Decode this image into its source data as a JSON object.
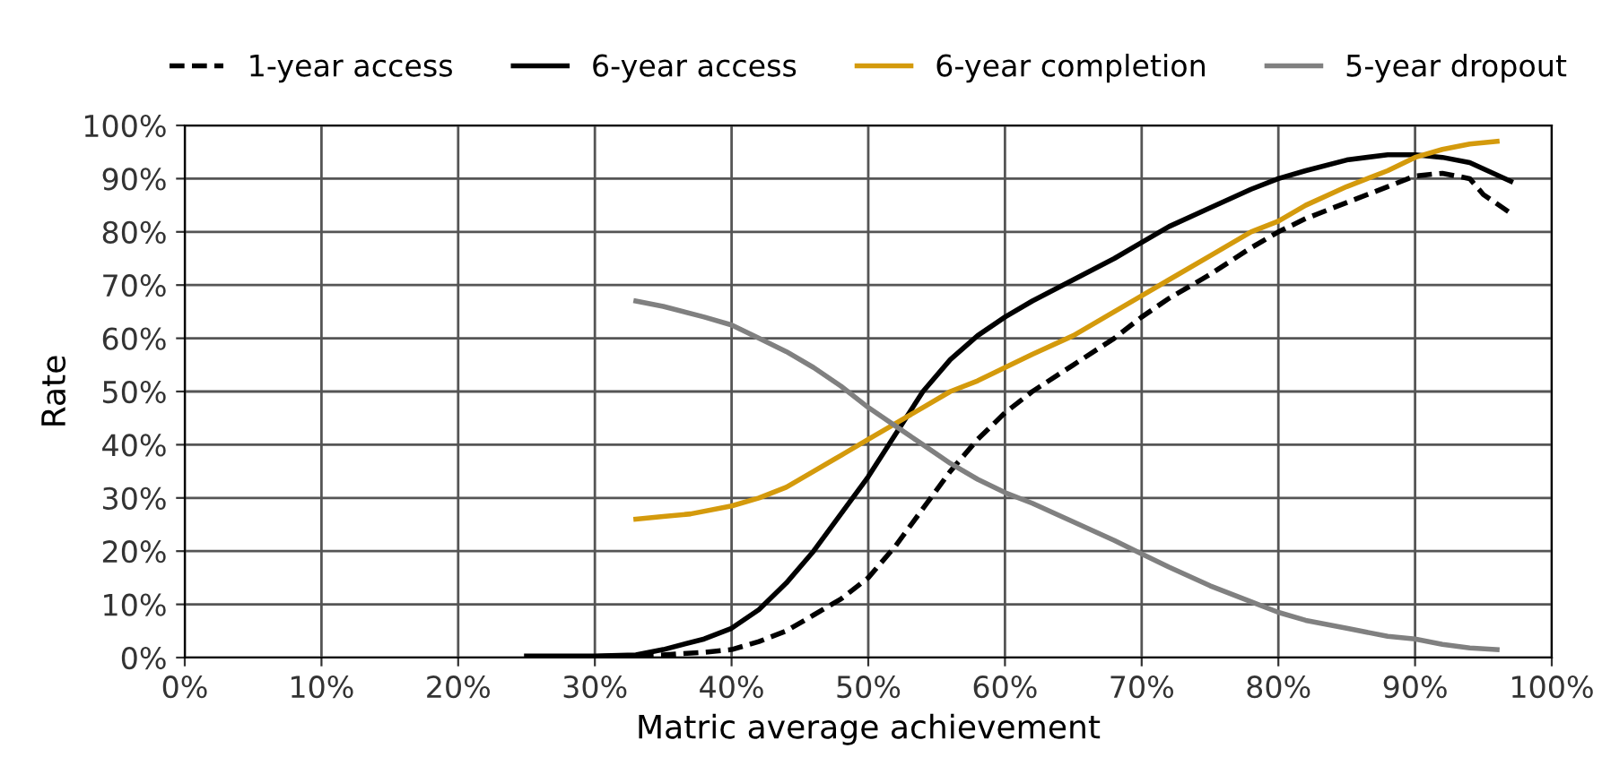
{
  "chart_data": {
    "type": "line",
    "xlabel": "Matric average achievement",
    "ylabel": "Rate",
    "xlim": [
      0,
      100
    ],
    "ylim": [
      0,
      100
    ],
    "xticks": [
      {
        "value": 0,
        "label": "0%"
      },
      {
        "value": 10,
        "label": "10%"
      },
      {
        "value": 20,
        "label": "20%"
      },
      {
        "value": 30,
        "label": "30%"
      },
      {
        "value": 40,
        "label": "40%"
      },
      {
        "value": 50,
        "label": "50%"
      },
      {
        "value": 60,
        "label": "60%"
      },
      {
        "value": 70,
        "label": "70%"
      },
      {
        "value": 80,
        "label": "80%"
      },
      {
        "value": 90,
        "label": "90%"
      },
      {
        "value": 100,
        "label": "100%"
      }
    ],
    "yticks": [
      {
        "value": 0,
        "label": "0%"
      },
      {
        "value": 10,
        "label": "10%"
      },
      {
        "value": 20,
        "label": "20%"
      },
      {
        "value": 30,
        "label": "30%"
      },
      {
        "value": 40,
        "label": "40%"
      },
      {
        "value": 50,
        "label": "50%"
      },
      {
        "value": 60,
        "label": "60%"
      },
      {
        "value": 70,
        "label": "70%"
      },
      {
        "value": 80,
        "label": "80%"
      },
      {
        "value": 90,
        "label": "90%"
      },
      {
        "value": 100,
        "label": "100%"
      }
    ],
    "grid": true,
    "legend": "top",
    "marker": "none",
    "series": [
      {
        "name": "1-year access",
        "color": "#000000",
        "line_style": "dashed",
        "x": [
          25,
          30,
          35,
          38,
          40,
          42,
          44,
          46,
          48,
          50,
          52,
          54,
          56,
          58,
          60,
          62,
          65,
          68,
          70,
          72,
          75,
          78,
          80,
          82,
          85,
          88,
          90,
          92,
          94,
          95,
          97
        ],
        "values": [
          0,
          0.2,
          0.5,
          1,
          1.5,
          3,
          5,
          8,
          11,
          15,
          21,
          28,
          35,
          41,
          46,
          50,
          55,
          60,
          64,
          67.5,
          72,
          77,
          80,
          82.5,
          85.5,
          88.5,
          90.5,
          91,
          90,
          87,
          83.5
        ]
      },
      {
        "name": "6-year access",
        "color": "#000000",
        "line_style": "solid",
        "x": [
          25,
          30,
          33,
          35,
          38,
          40,
          42,
          44,
          46,
          48,
          50,
          52,
          54,
          56,
          58,
          60,
          62,
          65,
          68,
          70,
          72,
          75,
          78,
          80,
          82,
          85,
          88,
          90,
          92,
          94,
          97
        ],
        "values": [
          0.3,
          0.3,
          0.5,
          1.5,
          3.5,
          5.5,
          9,
          14,
          20,
          27,
          34,
          42,
          50,
          56,
          60.5,
          64,
          67,
          71,
          75,
          78,
          81,
          84.5,
          88,
          90,
          91.5,
          93.5,
          94.5,
          94.5,
          94,
          93,
          89.5
        ]
      },
      {
        "name": "6-year completion",
        "color": "#d49a0c",
        "line_style": "solid",
        "x": [
          33,
          35,
          37,
          40,
          42,
          44,
          46,
          48,
          50,
          52,
          54,
          56,
          58,
          60,
          62,
          65,
          68,
          70,
          72,
          75,
          78,
          80,
          82,
          85,
          88,
          90,
          92,
          94,
          96
        ],
        "values": [
          26,
          26.5,
          27,
          28.5,
          30,
          32,
          35,
          38,
          41,
          44,
          47,
          50,
          52,
          54.5,
          57,
          60.5,
          65,
          68,
          71,
          75.5,
          80,
          82,
          85,
          88.5,
          91.5,
          94,
          95.5,
          96.5,
          97
        ]
      },
      {
        "name": "5-year dropout",
        "color": "#808080",
        "line_style": "solid",
        "x": [
          33,
          35,
          38,
          40,
          42,
          44,
          46,
          48,
          50,
          52,
          54,
          56,
          58,
          60,
          62,
          65,
          68,
          70,
          72,
          75,
          78,
          80,
          82,
          85,
          88,
          90,
          92,
          94,
          96
        ],
        "values": [
          67,
          66,
          64,
          62.5,
          60,
          57.5,
          54.5,
          51,
          47,
          43.5,
          40,
          36.5,
          33.5,
          31,
          29,
          25.5,
          22,
          19.5,
          17,
          13.5,
          10.5,
          8.5,
          7,
          5.5,
          4,
          3.5,
          2.5,
          1.8,
          1.5
        ]
      }
    ]
  }
}
